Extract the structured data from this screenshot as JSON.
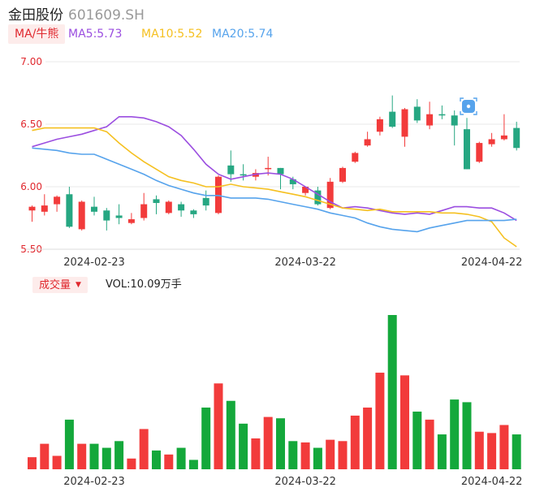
{
  "header": {
    "stock_name": "金田股份",
    "stock_code": "601609.SH"
  },
  "ma_legend": {
    "toggle_label": "MA/牛熊",
    "ma5": "MA5:5.73",
    "ma10": "MA10:5.52",
    "ma20": "MA20:5.74"
  },
  "volume_panel": {
    "toggle_label": "成交量",
    "caret": "▼",
    "vol_text": "VOL:10.09万手"
  },
  "colors": {
    "up": "#f23b3b",
    "down": "#14a83b",
    "candle_down": "#26a782",
    "ma5": "#9b4ee0",
    "ma10": "#f5c020",
    "ma20": "#56a3ec",
    "axis_text": "#e0282e",
    "grid": "#e8e8e8"
  },
  "icons": {
    "badge": "chat-badge-icon"
  },
  "chart_data": [
    {
      "type": "candlestick",
      "title": "",
      "ylim": [
        5.5,
        7.0
      ],
      "yticks": [
        "7.00",
        "6.50",
        "6.00",
        "5.50"
      ],
      "xtick_labels": [
        "2024-02-23",
        "2024-03-22",
        "2024-04-22"
      ],
      "xtick_index": [
        5,
        22,
        37
      ],
      "grid": true,
      "candles": [
        {
          "o": 5.81,
          "c": 5.84,
          "h": 5.85,
          "l": 5.72
        },
        {
          "o": 5.8,
          "c": 5.85,
          "h": 5.94,
          "l": 5.77
        },
        {
          "o": 5.86,
          "c": 5.92,
          "h": 5.93,
          "l": 5.8
        },
        {
          "o": 5.94,
          "c": 5.68,
          "h": 6.0,
          "l": 5.67
        },
        {
          "o": 5.66,
          "c": 5.88,
          "h": 5.89,
          "l": 5.65
        },
        {
          "o": 5.84,
          "c": 5.8,
          "h": 5.92,
          "l": 5.77
        },
        {
          "o": 5.81,
          "c": 5.73,
          "h": 5.83,
          "l": 5.65
        },
        {
          "o": 5.77,
          "c": 5.75,
          "h": 5.86,
          "l": 5.7
        },
        {
          "o": 5.71,
          "c": 5.74,
          "h": 5.79,
          "l": 5.7
        },
        {
          "o": 5.75,
          "c": 5.86,
          "h": 5.95,
          "l": 5.73
        },
        {
          "o": 5.9,
          "c": 5.87,
          "h": 5.93,
          "l": 5.78
        },
        {
          "o": 5.79,
          "c": 5.88,
          "h": 5.89,
          "l": 5.78
        },
        {
          "o": 5.86,
          "c": 5.81,
          "h": 5.88,
          "l": 5.76
        },
        {
          "o": 5.81,
          "c": 5.78,
          "h": 5.82,
          "l": 5.75
        },
        {
          "o": 5.91,
          "c": 5.85,
          "h": 5.97,
          "l": 5.81
        },
        {
          "o": 5.79,
          "c": 6.08,
          "h": 6.09,
          "l": 5.78
        },
        {
          "o": 6.17,
          "c": 6.1,
          "h": 6.29,
          "l": 6.04
        },
        {
          "o": 6.1,
          "c": 6.09,
          "h": 6.18,
          "l": 6.05
        },
        {
          "o": 6.08,
          "c": 6.11,
          "h": 6.14,
          "l": 6.05
        },
        {
          "o": 6.15,
          "c": 6.15,
          "h": 6.24,
          "l": 6.09
        },
        {
          "o": 6.15,
          "c": 6.1,
          "h": 6.15,
          "l": 5.98
        },
        {
          "o": 6.06,
          "c": 6.02,
          "h": 6.08,
          "l": 5.98
        },
        {
          "o": 5.95,
          "c": 6.0,
          "h": 6.0,
          "l": 5.93
        },
        {
          "o": 5.97,
          "c": 5.86,
          "h": 6.0,
          "l": 5.85
        },
        {
          "o": 5.83,
          "c": 6.04,
          "h": 6.07,
          "l": 5.82
        },
        {
          "o": 6.04,
          "c": 6.15,
          "h": 6.16,
          "l": 6.03
        },
        {
          "o": 6.2,
          "c": 6.27,
          "h": 6.28,
          "l": 6.19
        },
        {
          "o": 6.33,
          "c": 6.38,
          "h": 6.44,
          "l": 6.32
        },
        {
          "o": 6.44,
          "c": 6.54,
          "h": 6.56,
          "l": 6.41
        },
        {
          "o": 6.6,
          "c": 6.48,
          "h": 6.73,
          "l": 6.47
        },
        {
          "o": 6.4,
          "c": 6.62,
          "h": 6.63,
          "l": 6.32
        },
        {
          "o": 6.64,
          "c": 6.53,
          "h": 6.7,
          "l": 6.51
        },
        {
          "o": 6.49,
          "c": 6.58,
          "h": 6.68,
          "l": 6.46
        },
        {
          "o": 6.58,
          "c": 6.57,
          "h": 6.65,
          "l": 6.54
        },
        {
          "o": 6.57,
          "c": 6.49,
          "h": 6.61,
          "l": 6.33
        },
        {
          "o": 6.46,
          "c": 6.14,
          "h": 6.55,
          "l": 6.14
        },
        {
          "o": 6.2,
          "c": 6.35,
          "h": 6.36,
          "l": 6.19
        },
        {
          "o": 6.34,
          "c": 6.38,
          "h": 6.43,
          "l": 6.32
        },
        {
          "o": 6.38,
          "c": 6.41,
          "h": 6.58,
          "l": 6.37
        },
        {
          "o": 6.47,
          "c": 6.31,
          "h": 6.52,
          "l": 6.29
        }
      ],
      "series": [
        {
          "name": "MA5",
          "values": [
            6.32,
            6.35,
            6.38,
            6.4,
            6.42,
            6.45,
            6.48,
            6.56,
            6.56,
            6.55,
            6.52,
            6.48,
            6.41,
            6.3,
            6.18,
            6.1,
            6.06,
            6.08,
            6.1,
            6.11,
            6.1,
            6.06,
            6.0,
            5.94,
            5.88,
            5.83,
            5.84,
            5.83,
            5.81,
            5.79,
            5.78,
            5.79,
            5.78,
            5.81,
            5.84,
            5.84,
            5.83,
            5.83,
            5.79,
            5.73
          ]
        },
        {
          "name": "MA10",
          "values": [
            6.45,
            6.47,
            6.47,
            6.47,
            6.47,
            6.47,
            6.44,
            6.35,
            6.27,
            6.2,
            6.14,
            6.08,
            6.05,
            6.03,
            6.0,
            6.0,
            6.02,
            6.0,
            5.99,
            5.98,
            5.96,
            5.94,
            5.92,
            5.89,
            5.86,
            5.83,
            5.82,
            5.81,
            5.82,
            5.8,
            5.8,
            5.8,
            5.8,
            5.79,
            5.79,
            5.78,
            5.76,
            5.72,
            5.59,
            5.52
          ]
        },
        {
          "name": "MA20",
          "values": [
            6.31,
            6.3,
            6.29,
            6.27,
            6.26,
            6.26,
            6.22,
            6.18,
            6.14,
            6.1,
            6.05,
            6.01,
            5.98,
            5.95,
            5.93,
            5.93,
            5.91,
            5.91,
            5.91,
            5.9,
            5.88,
            5.86,
            5.84,
            5.82,
            5.79,
            5.77,
            5.75,
            5.71,
            5.68,
            5.66,
            5.65,
            5.64,
            5.67,
            5.69,
            5.71,
            5.73,
            5.73,
            5.73,
            5.73,
            5.74
          ]
        }
      ]
    },
    {
      "type": "bar",
      "title": "",
      "ylabel": "成交量",
      "xtick_labels": [
        "2024-02-23",
        "2024-03-22",
        "2024-04-22"
      ],
      "xtick_index": [
        5,
        22,
        37
      ],
      "values": [
        0.9,
        1.9,
        1.0,
        3.7,
        1.9,
        1.9,
        1.6,
        2.1,
        0.8,
        3.0,
        1.4,
        1.1,
        1.6,
        0.7,
        4.6,
        6.4,
        5.1,
        3.4,
        2.3,
        3.9,
        3.8,
        2.1,
        2.0,
        1.6,
        2.2,
        2.1,
        4.0,
        4.6,
        7.2,
        11.5,
        7.0,
        4.3,
        3.7,
        2.6,
        5.2,
        5.0,
        2.8,
        2.7,
        3.3,
        2.6
      ]
    }
  ]
}
